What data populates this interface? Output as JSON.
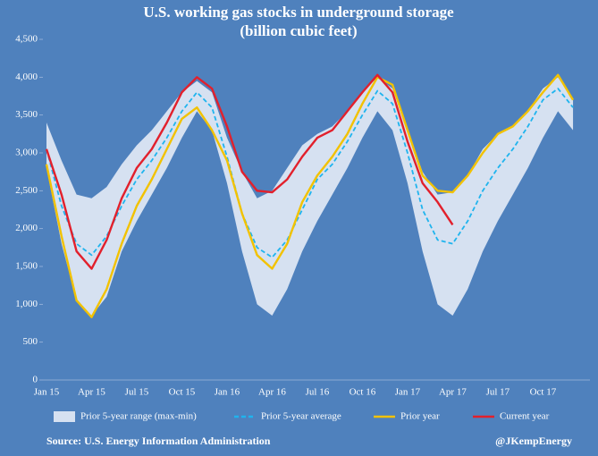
{
  "chart_data": {
    "type": "line",
    "title": "U.S. working gas stocks in underground storage",
    "subtitle": "(billion cubic feet)",
    "source": "Source: U.S. Energy Information Administration",
    "credit": "@JKempEnergy",
    "categories": [
      "Jan 15",
      null,
      null,
      "Apr 15",
      null,
      null,
      "Jul 15",
      null,
      null,
      "Oct 15",
      null,
      null,
      "Jan 16",
      null,
      null,
      "Apr 16",
      null,
      null,
      "Jul 16",
      null,
      null,
      "Oct 16",
      null,
      null,
      "Jan 17",
      null,
      null,
      "Apr 17",
      null,
      null,
      "Jul 17",
      null,
      null,
      "Oct 17",
      null,
      null
    ],
    "ylim": [
      0,
      4500
    ],
    "yticks": [
      0,
      500,
      {
        "value": 1000,
        "label": "1,000"
      },
      {
        "value": 1500,
        "label": "1,500"
      },
      {
        "value": 2000,
        "label": "2,000"
      },
      {
        "value": 2500,
        "label": "2,500"
      },
      {
        "value": 3000,
        "label": "3,000"
      },
      {
        "value": 3500,
        "label": "3,500"
      },
      {
        "value": 4000,
        "label": "4,000"
      },
      {
        "value": 4500,
        "label": "4,500"
      }
    ],
    "grid": false,
    "legend": "bottom",
    "series": [
      {
        "name": "Prior 5-year range (max-min)",
        "color": "#d6e1f1",
        "high": [
          3400,
          2900,
          2450,
          2400,
          2550,
          2850,
          3100,
          3300,
          3550,
          3800,
          3950,
          3800,
          3200,
          2750,
          2400,
          2500,
          2800,
          3100,
          3250,
          3350,
          3550,
          3800,
          4000,
          3850,
          3300,
          2750,
          2450,
          2480,
          2700,
          3050,
          3250,
          3350,
          3550,
          3850,
          4000,
          3700
        ],
        "low": [
          2800,
          1800,
          1050,
          850,
          1100,
          1700,
          2100,
          2450,
          2800,
          3200,
          3550,
          3300,
          2600,
          1700,
          1000,
          850,
          1200,
          1700,
          2100,
          2450,
          2800,
          3200,
          3550,
          3300,
          2600,
          1700,
          1000,
          850,
          1200,
          1700,
          2100,
          2450,
          2800,
          3200,
          3550,
          3300
        ]
      },
      {
        "name": "Prior 5-year average",
        "color": "#1fb4ee",
        "dashed": true,
        "values": [
          3050,
          2300,
          1800,
          1650,
          1900,
          2300,
          2650,
          2900,
          3200,
          3550,
          3800,
          3600,
          2950,
          2200,
          1750,
          1620,
          1850,
          2250,
          2650,
          2850,
          3150,
          3500,
          3820,
          3650,
          3000,
          2250,
          1850,
          1800,
          2100,
          2500,
          2800,
          3050,
          3350,
          3700,
          3850,
          3600
        ]
      },
      {
        "name": "Prior year",
        "color": "#f2c200",
        "values": [
          2850,
          1900,
          1050,
          830,
          1200,
          1800,
          2300,
          2650,
          3050,
          3450,
          3600,
          3300,
          2900,
          2200,
          1650,
          1470,
          1800,
          2350,
          2700,
          2950,
          3250,
          3650,
          4000,
          3900,
          3300,
          2700,
          2500,
          2480,
          2700,
          3000,
          3250,
          3350,
          3550,
          3800,
          4030,
          3700
        ]
      },
      {
        "name": "Current year",
        "color": "#e2202c",
        "values": [
          3050,
          2450,
          1700,
          1470,
          1850,
          2400,
          2800,
          3050,
          3400,
          3800,
          4000,
          3850,
          3350,
          2750,
          2500,
          2480,
          2650,
          2950,
          3200,
          3300,
          3550,
          3800,
          4030,
          3800,
          3150,
          2600,
          2350,
          2050,
          null,
          null,
          null,
          null,
          null,
          null,
          null,
          null
        ]
      }
    ]
  }
}
